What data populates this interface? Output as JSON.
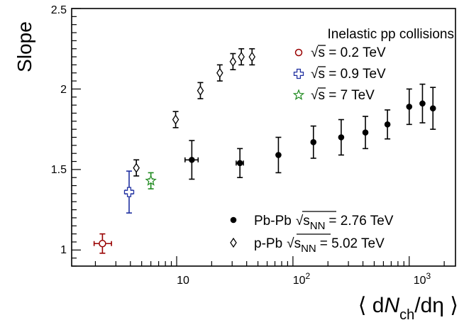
{
  "chart_data": {
    "type": "scatter",
    "xscale": "log",
    "xlim": [
      1.25,
      2500
    ],
    "ylim": [
      0.9,
      2.5
    ],
    "grid": false,
    "ylabel": "Slope",
    "xlabel": {
      "open": "⟨ d",
      "var": "N",
      "sub": "ch",
      "close": "/dη ⟩"
    },
    "yticks": [
      1,
      1.5,
      2,
      2.5
    ],
    "ytick_labels": [
      "1",
      "1.5",
      "2",
      "2.5"
    ],
    "xticks": [
      10,
      100,
      1000
    ],
    "xtick_labels": {
      "t10": "10",
      "t100_base": "10",
      "t100_exp": "2",
      "t1000_base": "10",
      "t1000_exp": "3"
    },
    "legend_top": {
      "title": "Inelastic pp collisions",
      "entries": [
        {
          "sqrt": "√",
          "label": "s = 0.2 TeV",
          "marker": "open-circle",
          "color": "#990000"
        },
        {
          "sqrt": "√",
          "label": "s = 0.9 TeV",
          "marker": "open-cross",
          "color": "#1f2fa0"
        },
        {
          "sqrt": "√",
          "label": "s = 7 TeV",
          "marker": "open-star",
          "color": "#1f8a1f"
        }
      ]
    },
    "legend_bottom": {
      "entries": [
        {
          "name": "Pb-Pb",
          "sqrt": "√",
          "var": "s",
          "sub": "NN",
          "energy": "= 2.76 TeV",
          "marker": "filled-circle",
          "color": "#000000"
        },
        {
          "name": "p-Pb",
          "sqrt": "√",
          "var": "s",
          "sub": "NN",
          "energy": "= 5.02 TeV",
          "marker": "open-diamond",
          "color": "#000000"
        }
      ]
    },
    "series": [
      {
        "name": "pp √s = 0.2 TeV",
        "marker": "open-circle",
        "color": "#990000",
        "points": [
          {
            "x": 2.3,
            "y": 1.04,
            "yerr": 0.06,
            "xlo": 1.95,
            "xhi": 2.75
          }
        ]
      },
      {
        "name": "pp √s = 0.9 TeV",
        "marker": "open-cross",
        "color": "#1f2fa0",
        "points": [
          {
            "x": 3.9,
            "y": 1.36,
            "yerr": 0.13,
            "xlo": 3.65,
            "xhi": 4.15
          }
        ]
      },
      {
        "name": "pp √s = 7 TeV",
        "marker": "open-star",
        "color": "#1f8a1f",
        "points": [
          {
            "x": 6.0,
            "y": 1.43,
            "yerr": 0.05,
            "xlo": 5.75,
            "xhi": 6.25
          }
        ]
      },
      {
        "name": "p-Pb √sNN = 5.02 TeV",
        "marker": "open-diamond",
        "color": "#000000",
        "points": [
          {
            "x": 4.5,
            "y": 1.51,
            "yerr": 0.05
          },
          {
            "x": 9.8,
            "y": 1.81,
            "yerr": 0.05
          },
          {
            "x": 16.0,
            "y": 1.99,
            "yerr": 0.05
          },
          {
            "x": 23.5,
            "y": 2.1,
            "yerr": 0.05
          },
          {
            "x": 30.5,
            "y": 2.17,
            "yerr": 0.05
          },
          {
            "x": 36.0,
            "y": 2.2,
            "yerr": 0.05
          },
          {
            "x": 44.5,
            "y": 2.2,
            "yerr": 0.05
          }
        ]
      },
      {
        "name": "Pb-Pb √sNN = 2.76 TeV",
        "marker": "filled-circle",
        "color": "#000000",
        "points": [
          {
            "x": 13.5,
            "y": 1.56,
            "yerr": 0.12,
            "xlo": 11.8,
            "xhi": 15.3
          },
          {
            "x": 35.0,
            "y": 1.54,
            "yerr": 0.09,
            "xlo": 32.5,
            "xhi": 37.5
          },
          {
            "x": 75.0,
            "y": 1.59,
            "yerr": 0.11
          },
          {
            "x": 150.0,
            "y": 1.67,
            "yerr": 0.1
          },
          {
            "x": 260.0,
            "y": 1.7,
            "yerr": 0.11
          },
          {
            "x": 420.0,
            "y": 1.73,
            "yerr": 0.1
          },
          {
            "x": 650.0,
            "y": 1.78,
            "yerr": 0.09
          },
          {
            "x": 1000.0,
            "y": 1.89,
            "yerr": 0.11
          },
          {
            "x": 1300.0,
            "y": 1.91,
            "yerr": 0.12
          },
          {
            "x": 1600.0,
            "y": 1.88,
            "yerr": 0.13
          }
        ]
      }
    ]
  }
}
